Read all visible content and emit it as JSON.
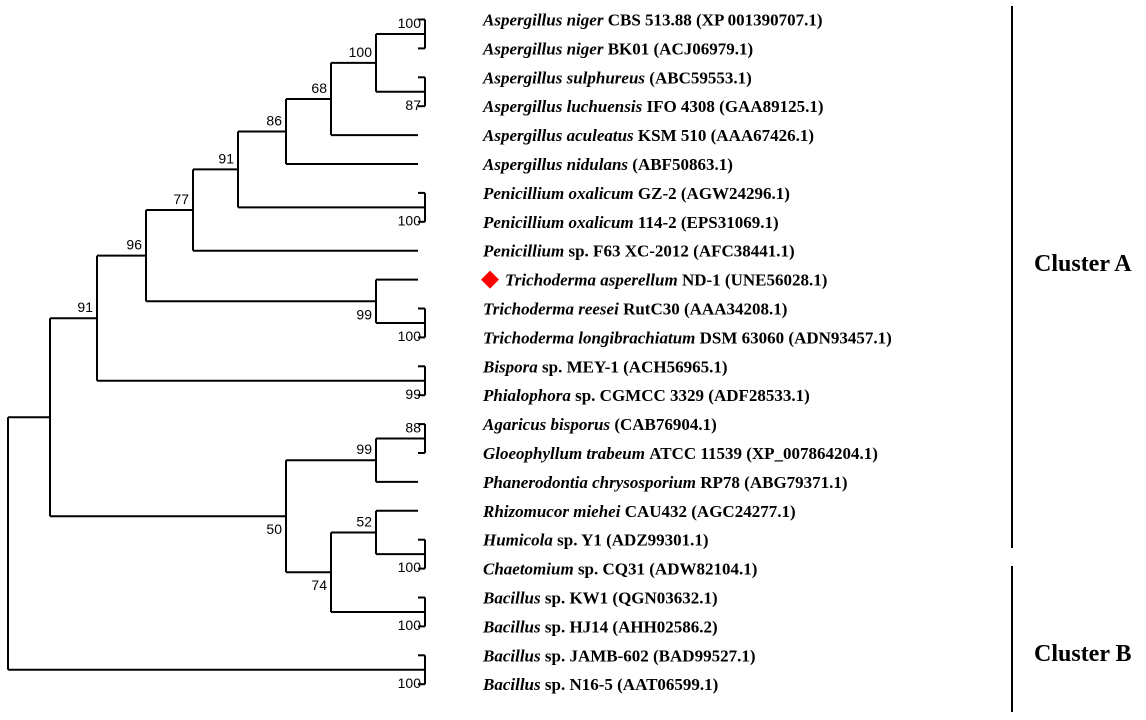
{
  "figure": {
    "taxa": [
      {
        "species": "Aspergillus niger",
        "rest": " CBS 513.88 (XP 001390707.1)",
        "highlight": false
      },
      {
        "species": "Aspergillus niger",
        "rest": " BK01 (ACJ06979.1)",
        "highlight": false
      },
      {
        "species": "Aspergillus sulphureus",
        "rest": " (ABC59553.1)",
        "highlight": false
      },
      {
        "species": "Aspergillus luchuensis",
        "rest": " IFO 4308 (GAA89125.1)",
        "highlight": false
      },
      {
        "species": "Aspergillus aculeatus",
        "rest": " KSM 510 (AAA67426.1)",
        "highlight": false
      },
      {
        "species": "Aspergillus nidulans",
        "rest": " (ABF50863.1)",
        "highlight": false
      },
      {
        "species": "Penicillium oxalicum",
        "rest": " GZ-2 (AGW24296.1)",
        "highlight": false
      },
      {
        "species": "Penicillium oxalicum",
        "rest": " 114-2 (EPS31069.1)",
        "highlight": false
      },
      {
        "species": "Penicillium",
        "rest": " sp. F63 XC-2012 (AFC38441.1)",
        "highlight": false
      },
      {
        "species": "Trichoderma asperellum",
        "rest": " ND-1 (UNE56028.1)",
        "highlight": true
      },
      {
        "species": "Trichoderma reesei",
        "rest": " RutC30 (AAA34208.1)",
        "highlight": false
      },
      {
        "species": "Trichoderma longibrachiatum",
        "rest": " DSM 63060 (ADN93457.1)",
        "highlight": false
      },
      {
        "species": "Bispora",
        "rest": " sp. MEY-1 (ACH56965.1)",
        "highlight": false
      },
      {
        "species": "Phialophora",
        "rest": " sp. CGMCC 3329 (ADF28533.1)",
        "highlight": false
      },
      {
        "species": "Agaricus bisporus",
        "rest": " (CAB76904.1)",
        "highlight": false
      },
      {
        "species": "Gloeophyllum trabeum",
        "rest": " ATCC 11539 (XP_007864204.1)",
        "highlight": false
      },
      {
        "species": "Phanerodontia chrysosporium",
        "rest": " RP78 (ABG79371.1)",
        "highlight": false
      },
      {
        "species": "Rhizomucor miehei",
        "rest": " CAU432 (AGC24277.1)",
        "highlight": false
      },
      {
        "species": "Humicola",
        "rest": " sp. Y1 (ADZ99301.1)",
        "highlight": false
      },
      {
        "species": "Chaetomium",
        "rest": " sp. CQ31 (ADW82104.1)",
        "highlight": false
      },
      {
        "species": "Bacillus",
        "rest": " sp. KW1 (QGN03632.1)",
        "highlight": false
      },
      {
        "species": "Bacillus",
        "rest": " sp. HJ14 (AHH02586.2)",
        "highlight": false
      },
      {
        "species": "Bacillus",
        "rest": " sp. JAMB-602 (BAD99527.1)",
        "highlight": false
      },
      {
        "species": "Bacillus",
        "rest": " sp. N16-5 (AAT06599.1)",
        "highlight": false
      }
    ],
    "support_values": [
      {
        "node": "n1",
        "value": "100"
      },
      {
        "node": "n2",
        "value": "100"
      },
      {
        "node": "n3",
        "value": "87"
      },
      {
        "node": "n4",
        "value": "68"
      },
      {
        "node": "n5",
        "value": "86"
      },
      {
        "node": "n6",
        "value": "100"
      },
      {
        "node": "n7",
        "value": "91"
      },
      {
        "node": "n8",
        "value": "77"
      },
      {
        "node": "n9",
        "value": "100"
      },
      {
        "node": "n10",
        "value": "99"
      },
      {
        "node": "n11",
        "value": "96"
      },
      {
        "node": "n12",
        "value": "99"
      },
      {
        "node": "n13",
        "value": "91"
      },
      {
        "node": "n14",
        "value": "88"
      },
      {
        "node": "n15",
        "value": "99"
      },
      {
        "node": "n16",
        "value": "52"
      },
      {
        "node": "n17",
        "value": "100"
      },
      {
        "node": "n18",
        "value": "100"
      },
      {
        "node": "n19",
        "value": "74"
      },
      {
        "node": "n20",
        "value": "50"
      },
      {
        "node": "n22",
        "value": "100"
      }
    ],
    "clusters": [
      {
        "label": "Cluster A"
      },
      {
        "label": "Cluster B"
      }
    ],
    "colors": {
      "line": "#000000",
      "highlight_marker": "#ff0000",
      "background": "#ffffff"
    },
    "marker_icon": "red-diamond-icon"
  }
}
